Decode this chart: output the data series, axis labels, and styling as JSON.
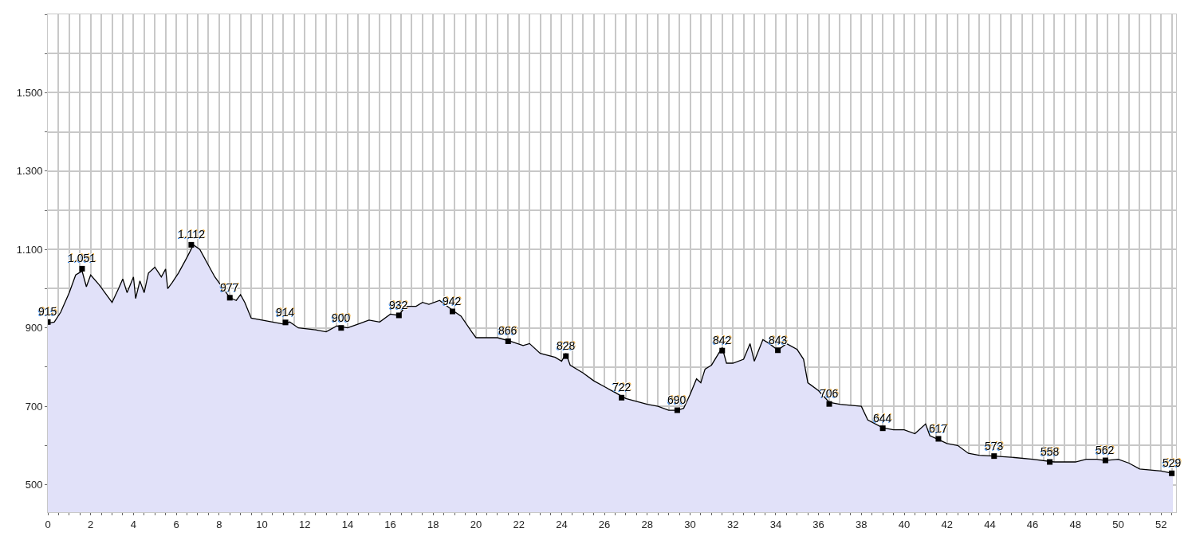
{
  "chart_data": {
    "type": "area",
    "x": [
      0,
      0.3,
      0.6,
      1.0,
      1.3,
      1.6,
      1.8,
      2.0,
      2.4,
      2.8,
      3.0,
      3.3,
      3.5,
      3.7,
      4.0,
      4.1,
      4.3,
      4.5,
      4.7,
      5.0,
      5.3,
      5.5,
      5.6,
      5.8,
      6.1,
      6.5,
      6.8,
      7.1,
      7.5,
      7.8,
      8.2,
      8.5,
      8.8,
      9.0,
      9.2,
      9.5,
      10.0,
      11.0,
      11.3,
      11.7,
      12.5,
      13.0,
      13.5,
      14.0,
      14.5,
      15.0,
      15.5,
      16.0,
      16.4,
      16.7,
      17.2,
      17.5,
      17.8,
      18.3,
      18.9,
      19.3,
      19.8,
      20.0,
      21.0,
      21.6,
      22.2,
      22.5,
      23.0,
      23.7,
      24.0,
      24.2,
      24.4,
      25.0,
      25.5,
      26.0,
      26.5,
      27.0,
      28.0,
      28.5,
      29.0,
      29.4,
      29.7,
      30.0,
      30.3,
      30.5,
      30.7,
      31.0,
      31.5,
      31.7,
      32.0,
      32.5,
      32.8,
      33.0,
      33.4,
      33.7,
      34.1,
      34.5,
      35.0,
      35.3,
      35.5,
      36.0,
      36.5,
      37.0,
      38.0,
      38.3,
      39.0,
      39.5,
      40.0,
      40.5,
      41.0,
      41.2,
      41.6,
      42.0,
      42.5,
      43.0,
      43.5,
      44.2,
      45.0,
      46.0,
      47.0,
      48.0,
      48.5,
      49.0,
      49.4,
      50.0,
      50.5,
      51.0,
      52.0,
      52.55
    ],
    "series": [
      {
        "color": "#e1e1f9",
        "values": [
          912,
          915,
          940,
          990,
          1035,
          1045,
          1005,
          1035,
          1010,
          980,
          965,
          1000,
          1025,
          990,
          1030,
          975,
          1020,
          990,
          1040,
          1055,
          1030,
          1050,
          1000,
          1015,
          1040,
          1080,
          1112,
          1100,
          1060,
          1030,
          1000,
          977,
          970,
          985,
          965,
          925,
          920,
          910,
          915,
          900,
          895,
          890,
          905,
          900,
          910,
          920,
          915,
          935,
          932,
          955,
          955,
          965,
          960,
          970,
          945,
          930,
          890,
          875,
          875,
          866,
          855,
          860,
          835,
          825,
          815,
          835,
          805,
          785,
          765,
          750,
          735,
          720,
          705,
          700,
          690,
          690,
          695,
          730,
          770,
          760,
          795,
          805,
          850,
          810,
          810,
          820,
          860,
          815,
          870,
          860,
          843,
          860,
          845,
          820,
          760,
          740,
          710,
          705,
          700,
          665,
          645,
          640,
          640,
          630,
          655,
          625,
          615,
          605,
          600,
          580,
          575,
          573,
          570,
          565,
          558,
          558,
          565,
          565,
          562,
          565,
          555,
          540,
          535,
          529
        ]
      }
    ],
    "xlim": [
      0,
      52.7
    ],
    "xticks": [
      0,
      {
        "value": 0.5,
        "label": null
      },
      2,
      {
        "value": 2.5,
        "label": null
      },
      4,
      {
        "value": 4.5,
        "label": null
      },
      6,
      {
        "value": 6.5,
        "label": null
      },
      8,
      {
        "value": 8.5,
        "label": null
      },
      10,
      {
        "value": 10.5,
        "label": null
      },
      12,
      {
        "value": 12.5,
        "label": null
      },
      14,
      {
        "value": 14.5,
        "label": null
      },
      16,
      {
        "value": 16.5,
        "label": null
      },
      18,
      {
        "value": 18.5,
        "label": null
      },
      20,
      {
        "value": 20.5,
        "label": null
      },
      22,
      {
        "value": 22.5,
        "label": null
      },
      24,
      {
        "value": 24.5,
        "label": null
      },
      26,
      {
        "value": 26.5,
        "label": null
      },
      28,
      {
        "value": 28.5,
        "label": null
      },
      30,
      {
        "value": 30.5,
        "label": null
      },
      32,
      {
        "value": 32.5,
        "label": null
      },
      34,
      {
        "value": 34.5,
        "label": null
      },
      36,
      {
        "value": 36.5,
        "label": null
      },
      38,
      {
        "value": 38.5,
        "label": null
      },
      40,
      {
        "value": 40.5,
        "label": null
      },
      42,
      {
        "value": 42.5,
        "label": null
      },
      44,
      {
        "value": 44.5,
        "label": null
      },
      46,
      {
        "value": 46.5,
        "label": null
      },
      48,
      {
        "value": 48.5,
        "label": null
      },
      50,
      {
        "value": 50.5,
        "label": null
      },
      52,
      {
        "value": 52.5,
        "label": null
      },
      {
        "value": 1,
        "label": null
      },
      {
        "value": 1.5,
        "label": null
      },
      {
        "value": 3,
        "label": null
      },
      {
        "value": 3.5,
        "label": null
      },
      {
        "value": 5,
        "label": null
      },
      {
        "value": 5.5,
        "label": null
      },
      {
        "value": 7,
        "label": null
      },
      {
        "value": 7.5,
        "label": null
      },
      {
        "value": 9,
        "label": null
      },
      {
        "value": 9.5,
        "label": null
      },
      {
        "value": 11,
        "label": null
      },
      {
        "value": 11.5,
        "label": null
      },
      {
        "value": 13,
        "label": null
      },
      {
        "value": 13.5,
        "label": null
      },
      {
        "value": 15,
        "label": null
      },
      {
        "value": 15.5,
        "label": null
      },
      {
        "value": 17,
        "label": null
      },
      {
        "value": 17.5,
        "label": null
      },
      {
        "value": 19,
        "label": null
      },
      {
        "value": 19.5,
        "label": null
      },
      {
        "value": 21,
        "label": null
      },
      {
        "value": 21.5,
        "label": null
      },
      {
        "value": 23,
        "label": null
      },
      {
        "value": 23.5,
        "label": null
      },
      {
        "value": 25,
        "label": null
      },
      {
        "value": 25.5,
        "label": null
      },
      {
        "value": 27,
        "label": null
      },
      {
        "value": 27.5,
        "label": null
      },
      {
        "value": 29,
        "label": null
      },
      {
        "value": 29.5,
        "label": null
      },
      {
        "value": 31,
        "label": null
      },
      {
        "value": 31.5,
        "label": null
      },
      {
        "value": 33,
        "label": null
      },
      {
        "value": 33.5,
        "label": null
      },
      {
        "value": 35,
        "label": null
      },
      {
        "value": 35.5,
        "label": null
      },
      {
        "value": 37,
        "label": null
      },
      {
        "value": 37.5,
        "label": null
      },
      {
        "value": 39,
        "label": null
      },
      {
        "value": 39.5,
        "label": null
      },
      {
        "value": 41,
        "label": null
      },
      {
        "value": 41.5,
        "label": null
      },
      {
        "value": 43,
        "label": null
      },
      {
        "value": 43.5,
        "label": null
      },
      {
        "value": 45,
        "label": null
      },
      {
        "value": 45.5,
        "label": null
      },
      {
        "value": 47,
        "label": null
      },
      {
        "value": 47.5,
        "label": null
      },
      {
        "value": 49,
        "label": null
      },
      {
        "value": 49.5,
        "label": null
      },
      {
        "value": 51,
        "label": null
      },
      {
        "value": 51.5,
        "label": null
      }
    ],
    "ylim": [
      430,
      1700
    ],
    "yticks": [
      500,
      {
        "value": 600,
        "label": null
      },
      700,
      {
        "value": 800,
        "label": null
      },
      900,
      {
        "value": 1000,
        "label": null
      },
      {
        "value": 1100,
        "label": "1.100"
      },
      {
        "value": 1200,
        "label": null
      },
      {
        "value": 1300,
        "label": "1.300"
      },
      {
        "value": 1400,
        "label": null
      },
      {
        "value": 1500,
        "label": "1.500"
      },
      {
        "value": 1600,
        "label": null
      },
      {
        "value": 1700,
        "label": null
      }
    ],
    "grid": true,
    "annotations": [
      {
        "text": "915",
        "x": 0,
        "y": 915
      },
      {
        "text": "1.051",
        "x": 1.6,
        "y": 1051
      },
      {
        "text": "1.112",
        "x": 6.7,
        "y": 1112
      },
      {
        "text": "977",
        "x": 8.5,
        "y": 977
      },
      {
        "text": "914",
        "x": 11.1,
        "y": 914
      },
      {
        "text": "900",
        "x": 13.7,
        "y": 900
      },
      {
        "text": "932",
        "x": 16.4,
        "y": 932
      },
      {
        "text": "942",
        "x": 18.9,
        "y": 942
      },
      {
        "text": "866",
        "x": 21.5,
        "y": 866
      },
      {
        "text": "828",
        "x": 24.2,
        "y": 828
      },
      {
        "text": "722",
        "x": 26.8,
        "y": 722
      },
      {
        "text": "690",
        "x": 29.4,
        "y": 690
      },
      {
        "text": "842",
        "x": 31.5,
        "y": 842
      },
      {
        "text": "843",
        "x": 34.1,
        "y": 843
      },
      {
        "text": "706",
        "x": 36.5,
        "y": 706
      },
      {
        "text": "644",
        "x": 39.0,
        "y": 644
      },
      {
        "text": "617",
        "x": 41.6,
        "y": 617
      },
      {
        "text": "573",
        "x": 44.2,
        "y": 573
      },
      {
        "text": "558",
        "x": 46.8,
        "y": 558
      },
      {
        "text": "562",
        "x": 49.4,
        "y": 562
      },
      {
        "text": "529",
        "x": 52.5,
        "y": 529
      }
    ]
  }
}
